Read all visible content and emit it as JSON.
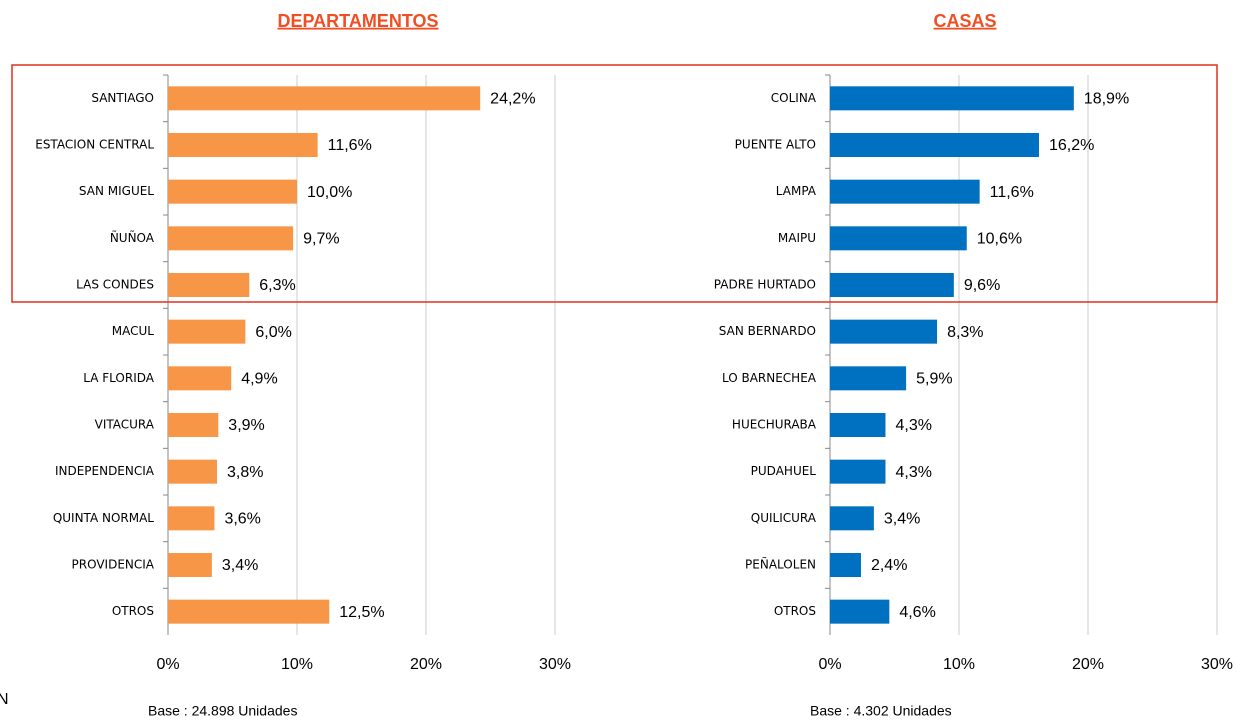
{
  "chart_data": [
    {
      "type": "barh",
      "title": "DEPARTAMENTOS",
      "note": "Base : 24.898 Unidades",
      "color": "#f79646",
      "categories": [
        "SANTIAGO",
        "ESTACION CENTRAL",
        "SAN MIGUEL",
        "ÑUÑOA",
        "LAS CONDES",
        "MACUL",
        "LA FLORIDA",
        "VITACURA",
        "INDEPENDENCIA",
        "QUINTA NORMAL",
        "PROVIDENCIA",
        "OTROS"
      ],
      "values": [
        24.2,
        11.6,
        10.0,
        9.7,
        6.3,
        6.0,
        4.9,
        3.9,
        3.8,
        3.6,
        3.4,
        12.5
      ],
      "value_labels": [
        "24,2%",
        "11,6%",
        "10,0%",
        "9,7%",
        "6,3%",
        "6,0%",
        "4,9%",
        "3,9%",
        "3,8%",
        "3,6%",
        "3,4%",
        "12,5%"
      ],
      "xlim": [
        0,
        30
      ],
      "xticks": [
        {
          "value": 0,
          "label": "0%"
        },
        {
          "value": 10,
          "label": "10%"
        },
        {
          "value": 20,
          "label": "20%"
        },
        {
          "value": 30,
          "label": "30%"
        }
      ],
      "grid": true
    },
    {
      "type": "barh",
      "title": "CASAS",
      "note": "Base : 4.302 Unidades",
      "color": "#0070c0",
      "categories": [
        "COLINA",
        "PUENTE ALTO",
        "LAMPA",
        "MAIPU",
        "PADRE HURTADO",
        "SAN BERNARDO",
        "LO BARNECHEA",
        "HUECHURABA",
        "PUDAHUEL",
        "QUILICURA",
        "PEÑALOLEN",
        "OTROS"
      ],
      "values": [
        18.9,
        16.2,
        11.6,
        10.6,
        9.6,
        8.3,
        5.9,
        4.3,
        4.3,
        3.4,
        2.4,
        4.6
      ],
      "value_labels": [
        "18,9%",
        "16,2%",
        "11,6%",
        "10,6%",
        "9,6%",
        "8,3%",
        "5,9%",
        "4,3%",
        "4,3%",
        "3,4%",
        "2,4%",
        "4,6%"
      ],
      "xlim": [
        0,
        30
      ],
      "xticks": [
        {
          "value": 0,
          "label": "0%"
        },
        {
          "value": 10,
          "label": "10%"
        },
        {
          "value": 20,
          "label": "20%"
        },
        {
          "value": 30,
          "label": "30%"
        }
      ],
      "grid": true
    }
  ],
  "edge_text": "N"
}
